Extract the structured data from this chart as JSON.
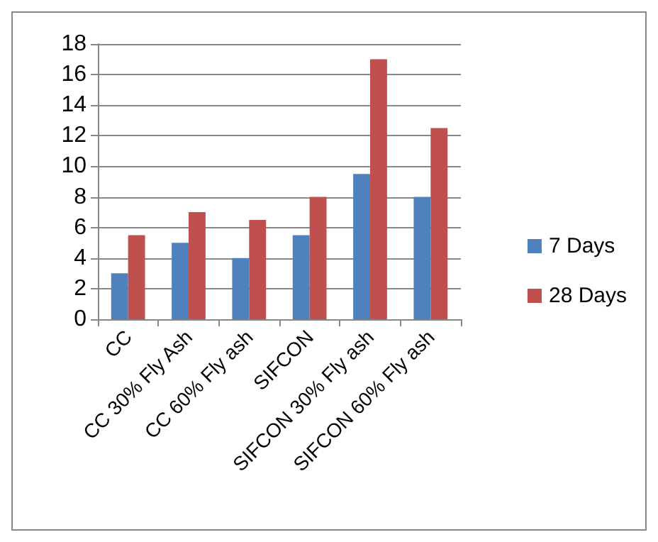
{
  "chart_data": {
    "type": "bar",
    "categories": [
      "CC",
      "CC 30% Fly Ash",
      "CC 60% Fly ash",
      "SIFCON",
      "SIFCON 30% Fly ash",
      "SIFCON 60% Fly ash"
    ],
    "series": [
      {
        "name": "7 Days",
        "color": "#4f81bd",
        "values": [
          3,
          5,
          4,
          5.5,
          9.5,
          8
        ]
      },
      {
        "name": "28 Days",
        "color": "#c0504d",
        "values": [
          5.5,
          7,
          6.5,
          8,
          17,
          12.5
        ]
      }
    ],
    "ylim": [
      0,
      18
    ],
    "yticks": [
      0,
      2,
      4,
      6,
      8,
      10,
      12,
      14,
      16,
      18
    ],
    "grid": "y",
    "legend": "right"
  }
}
